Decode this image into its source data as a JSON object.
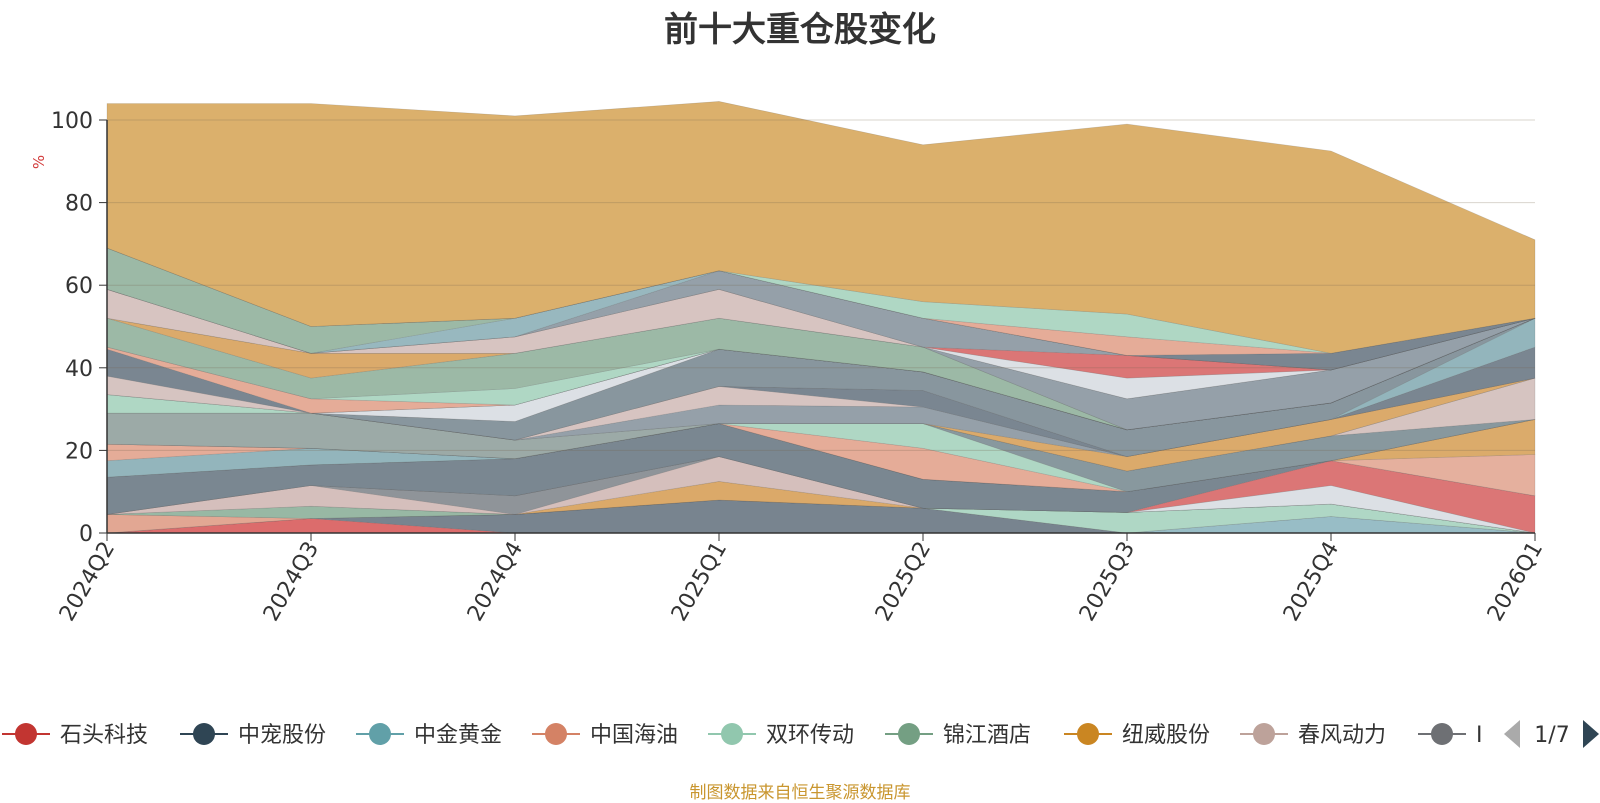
{
  "chart_data": {
    "type": "area",
    "stacked": true,
    "title": "前十大重仓股变化",
    "ylabel": "%",
    "ylim": [
      0,
      100
    ],
    "yticks": [
      0,
      20,
      40,
      60,
      80,
      100
    ],
    "x": [
      "2024Q2",
      "2024Q3",
      "2024Q4",
      "2025Q1",
      "2025Q2",
      "2025Q3",
      "2025Q4",
      "2026Q1"
    ],
    "series": [
      {
        "color": "#d95f5f",
        "values": [
          0,
          3.5,
          0,
          0,
          0,
          0,
          0,
          0
        ]
      },
      {
        "color": "#6d7a86",
        "values": [
          0,
          0,
          4.5,
          8,
          6,
          0,
          0,
          0
        ]
      },
      {
        "color": "#8fb7c1",
        "values": [
          0,
          0,
          0,
          0,
          0,
          0,
          4,
          0
        ]
      },
      {
        "color": "#e0a08a",
        "values": [
          4.5,
          0,
          0,
          0,
          0,
          0,
          0,
          0
        ]
      },
      {
        "color": "#a8d4c0",
        "values": [
          0,
          0,
          0,
          0,
          0,
          5,
          3,
          0
        ]
      },
      {
        "color": "#8fb29c",
        "values": [
          0,
          3,
          0,
          0,
          0,
          0,
          0,
          0
        ]
      },
      {
        "color": "#d8a25c",
        "values": [
          0,
          0,
          0,
          4.5,
          0,
          0,
          0,
          0
        ]
      },
      {
        "color": "#d1bab6",
        "values": [
          0,
          5,
          0,
          6,
          0,
          0,
          0,
          0
        ]
      },
      {
        "color": "#858b90",
        "values": [
          0,
          0,
          4.5,
          0,
          0,
          0,
          0,
          0
        ]
      },
      {
        "color": "#d9dde3",
        "values": [
          0,
          0,
          0,
          0,
          0,
          0,
          4.5,
          0
        ]
      },
      {
        "color": "#d86a6a",
        "values": [
          0,
          0,
          0,
          0,
          0,
          0,
          6,
          9
        ]
      },
      {
        "color": "#6f7d88",
        "values": [
          9,
          5,
          9,
          8,
          7,
          5,
          0,
          0
        ]
      },
      {
        "color": "#e3a996",
        "values": [
          0,
          0,
          0,
          0,
          0,
          0,
          0,
          10
        ]
      },
      {
        "color": "#d8a45e",
        "values": [
          0,
          0,
          0,
          0,
          0,
          0,
          0,
          8.5
        ]
      },
      {
        "color": "#8aafb6",
        "values": [
          4,
          4,
          0,
          0,
          0,
          0,
          0,
          0
        ]
      },
      {
        "color": "#e3a58f",
        "values": [
          4,
          0,
          0,
          0,
          7.5,
          0,
          0,
          0
        ]
      },
      {
        "color": "#a8d4bf",
        "values": [
          0,
          0,
          0,
          0,
          6,
          0,
          0,
          0
        ]
      },
      {
        "color": "#7e8f96",
        "values": [
          0,
          0,
          0,
          0,
          0,
          5,
          6,
          0
        ]
      },
      {
        "color": "#d2bfbc",
        "values": [
          0,
          0,
          0,
          0,
          0,
          0,
          0,
          10
        ]
      },
      {
        "color": "#94a3a0",
        "values": [
          7.5,
          8.5,
          4.5,
          0,
          0,
          0,
          0,
          0
        ]
      },
      {
        "color": "#d8a35e",
        "values": [
          0,
          0,
          0,
          0,
          0,
          3.5,
          4,
          0
        ]
      },
      {
        "color": "#8c98a2",
        "values": [
          0,
          0,
          0,
          4.5,
          4,
          0,
          0,
          0
        ]
      },
      {
        "color": "#d4bfbc",
        "values": [
          0,
          0,
          0,
          4.5,
          0,
          0,
          0,
          0
        ]
      },
      {
        "color": "#6f7c88",
        "values": [
          0,
          0,
          0,
          0,
          4,
          0,
          0,
          7.5
        ]
      },
      {
        "color": "#8aafb6",
        "values": [
          0,
          0,
          0,
          0,
          0,
          0,
          0,
          7
        ]
      },
      {
        "color": "#7e8d96",
        "values": [
          0,
          0,
          4.5,
          9,
          4.5,
          6.5,
          4,
          0
        ]
      },
      {
        "color": "#a8d4bf",
        "values": [
          4.5,
          0,
          0,
          0,
          0,
          0,
          0,
          0
        ]
      },
      {
        "color": "#d9dde3",
        "values": [
          0,
          0,
          4,
          0,
          0,
          0,
          0,
          0
        ]
      },
      {
        "color": "#d8a35e",
        "values": [
          0,
          0,
          0,
          0,
          0,
          0,
          0,
          0
        ]
      },
      {
        "color": "#d3bfbc",
        "values": [
          4.5,
          0,
          0,
          0,
          0,
          0,
          0,
          0
        ]
      },
      {
        "color": "#6f7c88",
        "values": [
          6.5,
          0,
          0,
          0,
          0,
          0,
          0,
          0
        ]
      },
      {
        "color": "#e3a58f",
        "values": [
          0.5,
          3.5,
          0,
          0,
          0,
          0,
          0,
          0
        ]
      },
      {
        "color": "#a8d4bf",
        "values": [
          0,
          0,
          4,
          0,
          0,
          0,
          0,
          0
        ]
      },
      {
        "color": "#94b39e",
        "values": [
          7,
          5,
          8.5,
          7.5,
          6,
          0,
          0,
          0
        ]
      },
      {
        "color": "#d8a35e",
        "values": [
          0,
          6,
          0,
          0,
          0,
          0,
          0,
          0
        ]
      },
      {
        "color": "#8c98a2",
        "values": [
          0,
          0,
          0,
          0,
          0,
          7.5,
          8,
          0
        ]
      },
      {
        "color": "#d4bfbc",
        "values": [
          7,
          0,
          4,
          7,
          0,
          0,
          0,
          0
        ]
      },
      {
        "color": "#d9dde3",
        "values": [
          0,
          0,
          0,
          0,
          0,
          5,
          0,
          0
        ]
      },
      {
        "color": "#d86a6a",
        "values": [
          0,
          0,
          0,
          0,
          0,
          5.5,
          0,
          0
        ]
      },
      {
        "color": "#8c98a2",
        "values": [
          0,
          0,
          0,
          4.5,
          7,
          0,
          0,
          0
        ]
      },
      {
        "color": "#8fb2ba",
        "values": [
          0,
          0,
          4.5,
          0,
          0,
          0,
          0,
          0
        ]
      },
      {
        "color": "#94b39e",
        "values": [
          10,
          6.5,
          0,
          0,
          0,
          0,
          0,
          0
        ]
      },
      {
        "color": "#6f7c88",
        "values": [
          0,
          0,
          0,
          0,
          0,
          0,
          4,
          0
        ]
      },
      {
        "color": "#e3a58f",
        "values": [
          0,
          0,
          0,
          0,
          0,
          4.5,
          0,
          0
        ]
      },
      {
        "color": "#a8d4bf",
        "values": [
          0,
          0,
          0,
          0,
          4,
          5.5,
          0,
          0
        ]
      },
      {
        "color": "#d8a960",
        "values": [
          35,
          54,
          49,
          41,
          38,
          46,
          49,
          19
        ]
      }
    ],
    "legend": {
      "position": "bottom",
      "items": [
        {
          "name": "石头科技",
          "color": "#c23531"
        },
        {
          "name": "中宠股份",
          "color": "#2f4554"
        },
        {
          "name": "中金黄金",
          "color": "#61a0a8"
        },
        {
          "name": "中国海油",
          "color": "#d48265"
        },
        {
          "name": "双环传动",
          "color": "#91c7ae"
        },
        {
          "name": "锦江酒店",
          "color": "#749f83"
        },
        {
          "name": "纽威股份",
          "color": "#ca8622"
        },
        {
          "name": "春风动力",
          "color": "#bda29a"
        },
        {
          "name": "I",
          "color": "#6e7074"
        }
      ],
      "page": "1/7"
    },
    "source": "制图数据来自恒生聚源数据库"
  }
}
